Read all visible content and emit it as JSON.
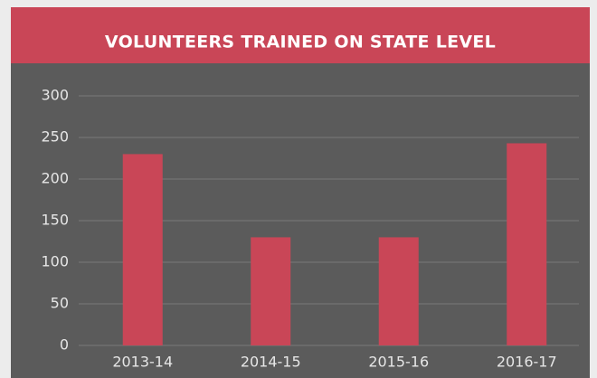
{
  "chart_data": {
    "type": "bar",
    "title": "VOLUNTEERS TRAINED ON STATE LEVEL",
    "categories": [
      "2013-14",
      "2014-15",
      "2015-16",
      "2016-17"
    ],
    "values": [
      230,
      130,
      130,
      243
    ],
    "color": "#c94657",
    "ylim": [
      0,
      300
    ],
    "yticks": [
      0,
      50,
      100,
      150,
      200,
      250,
      300
    ],
    "grid": true
  }
}
